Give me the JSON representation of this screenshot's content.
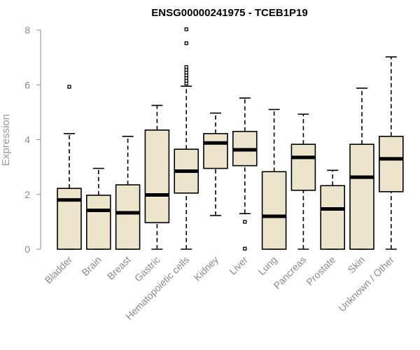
{
  "chart_data": {
    "type": "boxplot",
    "title": "ENSG00000241975 - TCEB1P19",
    "xlabel": "",
    "ylabel": "Expression",
    "ylim": [
      0,
      8
    ],
    "yticks": [
      0,
      2,
      4,
      6,
      8
    ],
    "categories": [
      "Bladder",
      "Brain",
      "Breast",
      "Gastric",
      "Hematopoietic cells",
      "Kidney",
      "Liver",
      "Lung",
      "Pancreas",
      "Prostate",
      "Skin",
      "Unknown / Other"
    ],
    "boxes": [
      {
        "name": "Bladder",
        "min": 0,
        "q1": 0,
        "median": 1.8,
        "q3": 2.22,
        "max": 4.22,
        "outliers": [
          5.93
        ]
      },
      {
        "name": "Brain",
        "min": 0,
        "q1": 0,
        "median": 1.42,
        "q3": 1.97,
        "max": 2.95,
        "outliers": []
      },
      {
        "name": "Breast",
        "min": 0,
        "q1": 0,
        "median": 1.33,
        "q3": 2.35,
        "max": 4.12,
        "outliers": []
      },
      {
        "name": "Gastric",
        "min": 0,
        "q1": 0.97,
        "median": 1.98,
        "q3": 4.35,
        "max": 5.25,
        "outliers": []
      },
      {
        "name": "Hematopoietic cells",
        "min": 0,
        "q1": 2.05,
        "median": 2.85,
        "q3": 3.65,
        "max": 5.95,
        "outliers": [
          6.05,
          6.15,
          6.25,
          6.35,
          6.45,
          6.55,
          6.65,
          7.52,
          8.03
        ]
      },
      {
        "name": "Kidney",
        "min": 1.23,
        "q1": 2.95,
        "median": 3.88,
        "q3": 4.22,
        "max": 4.97,
        "outliers": []
      },
      {
        "name": "Liver",
        "min": 1.3,
        "q1": 3.05,
        "median": 3.63,
        "q3": 4.3,
        "max": 5.52,
        "outliers": [
          1.0,
          0.02
        ]
      },
      {
        "name": "Lung",
        "min": 0,
        "q1": 0,
        "median": 1.2,
        "q3": 2.83,
        "max": 5.1,
        "outliers": []
      },
      {
        "name": "Pancreas",
        "min": 0,
        "q1": 2.15,
        "median": 3.35,
        "q3": 3.83,
        "max": 4.93,
        "outliers": []
      },
      {
        "name": "Prostate",
        "min": 0,
        "q1": 0,
        "median": 1.47,
        "q3": 2.32,
        "max": 2.88,
        "outliers": []
      },
      {
        "name": "Skin",
        "min": 0,
        "q1": 0,
        "median": 2.63,
        "q3": 3.83,
        "max": 5.88,
        "outliers": []
      },
      {
        "name": "Unknown / Other",
        "min": 0,
        "q1": 2.1,
        "median": 3.3,
        "q3": 4.12,
        "max": 7.02,
        "outliers": []
      }
    ],
    "box_fill": "#ede5cb",
    "box_stroke": "#000000",
    "axis_color": "#8a8a8a",
    "grid": false
  }
}
